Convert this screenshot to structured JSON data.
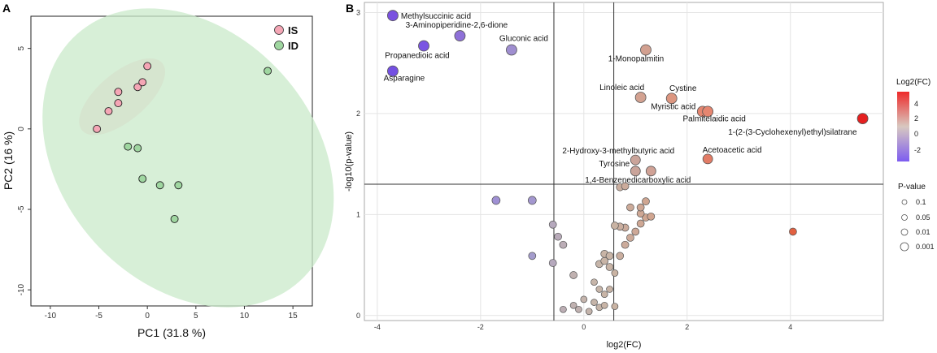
{
  "panels": {
    "a_label": "A",
    "b_label": "B"
  },
  "pca": {
    "type": "scatter",
    "xlabel": "PC1 (31.8 %)",
    "ylabel": "PC2 (16 %)",
    "xlim": [
      -12,
      17
    ],
    "ylim": [
      -11,
      7
    ],
    "xticks": [
      -10,
      -5,
      0,
      5,
      10,
      15
    ],
    "yticks": [
      5,
      0,
      -5,
      -10
    ],
    "grid": false,
    "legend_position": "top-right",
    "series": [
      {
        "name": "IS",
        "color": "#f4a6b5",
        "ellipse_color": "#f8c8d2",
        "points": [
          [
            -5.2,
            0.0
          ],
          [
            -4.0,
            1.1
          ],
          [
            -3.0,
            2.3
          ],
          [
            -3.0,
            1.6
          ],
          [
            -1.0,
            2.6
          ],
          [
            -0.5,
            2.9
          ],
          [
            0.0,
            3.9
          ]
        ]
      },
      {
        "name": "ID",
        "color": "#9fd6a0",
        "ellipse_color": "#c9e9c9",
        "points": [
          [
            12.4,
            3.6
          ],
          [
            -2.0,
            -1.1
          ],
          [
            -1.0,
            -1.2
          ],
          [
            -0.5,
            -3.1
          ],
          [
            1.3,
            -3.5
          ],
          [
            3.2,
            -3.5
          ],
          [
            2.8,
            -5.6
          ]
        ]
      }
    ]
  },
  "volcano": {
    "type": "scatter",
    "xlabel": "log2(FC)",
    "ylabel": "-log10(p-value)",
    "xlim": [
      -4.25,
      5.8
    ],
    "ylim": [
      -0.05,
      3.1
    ],
    "xticks": [
      -4,
      -2,
      0,
      2,
      4
    ],
    "yticks": [
      0,
      1,
      2,
      3
    ],
    "grid": true,
    "vlines": [
      -0.58,
      0.58
    ],
    "hline": 1.3,
    "color_legend_title": "Log2(FC)",
    "color_legend_ticks": [
      "4",
      "2",
      "0",
      "-2"
    ],
    "size_legend_title": "P-value",
    "size_legend_items": [
      "0.1",
      "0.05",
      "0.01",
      "0.001"
    ],
    "labeled_points": [
      {
        "label": "Methylsuccinic acid",
        "x": -3.7,
        "y": 2.97,
        "color": "#7a52e0",
        "r": 6.5
      },
      {
        "label": "3-Aminopiperidine-2,6-dione",
        "x": -2.4,
        "y": 2.77,
        "color": "#8e70d8",
        "r": 6.5
      },
      {
        "label": "Propanedioic acid",
        "x": -3.1,
        "y": 2.67,
        "color": "#7a55e2",
        "r": 6.5
      },
      {
        "label": "Gluconic acid",
        "x": -1.4,
        "y": 2.63,
        "color": "#9f8ed0",
        "r": 6.5
      },
      {
        "label": "Asparagine",
        "x": -3.7,
        "y": 2.42,
        "color": "#7450e2",
        "r": 6.5
      },
      {
        "label": "1-Monopalmitin",
        "x": 1.2,
        "y": 2.63,
        "color": "#d2a090",
        "r": 6.5
      },
      {
        "label": "Linoleic acid",
        "x": 1.1,
        "y": 2.16,
        "color": "#d3a291",
        "r": 6.5
      },
      {
        "label": "Cystine",
        "x": 1.7,
        "y": 2.15,
        "color": "#dc9680",
        "r": 6.5
      },
      {
        "label": "Myristic acid",
        "x": 2.3,
        "y": 2.02,
        "color": "#e58670",
        "r": 6.5
      },
      {
        "label": "Palmitelaidic acid",
        "x": 2.4,
        "y": 2.02,
        "color": "#e68670",
        "r": 6.5
      },
      {
        "label": "1-(2-(3-Cyclohexenyl)ethyl)silatrane",
        "x": 5.4,
        "y": 1.95,
        "color": "#e52020",
        "r": 6.5
      },
      {
        "label": "2-Hydroxy-3-methylbutyric acid",
        "x": 1.0,
        "y": 1.54,
        "color": "#caa49a",
        "r": 6
      },
      {
        "label": "Acetoacetic acid",
        "x": 2.4,
        "y": 1.55,
        "color": "#e27c66",
        "r": 6
      },
      {
        "label": "Tyrosine",
        "x": 1.0,
        "y": 1.43,
        "color": "#caa49a",
        "r": 6
      },
      {
        "label": "1,4-Benzenedicarboxylic acid",
        "x": 1.3,
        "y": 1.43,
        "color": "#d0a296",
        "r": 6
      }
    ],
    "points": [
      [
        -1.7,
        1.14,
        "#9f90d4",
        5
      ],
      [
        -1.0,
        1.14,
        "#a397cf",
        5
      ],
      [
        -1.0,
        0.59,
        "#a49ccc",
        4.5
      ],
      [
        -0.6,
        0.9,
        "#b6a9bd",
        4.5
      ],
      [
        -0.5,
        0.78,
        "#b8aab9",
        4.5
      ],
      [
        -0.4,
        0.7,
        "#bbadb6",
        4.5
      ],
      [
        -0.6,
        0.52,
        "#b6a9bd",
        4.5
      ],
      [
        -0.2,
        0.4,
        "#c0b1b0",
        4.5
      ],
      [
        -0.4,
        0.06,
        "#bcaeb4",
        4
      ],
      [
        -0.2,
        0.1,
        "#c0b1b0",
        4
      ],
      [
        -0.1,
        0.06,
        "#c0b1b0",
        4
      ],
      [
        0.0,
        0.16,
        "#c4b4ac",
        4
      ],
      [
        0.1,
        0.04,
        "#c4b4ac",
        4
      ],
      [
        0.2,
        0.13,
        "#c6b5a9",
        4
      ],
      [
        0.3,
        0.08,
        "#c6b5a9",
        4
      ],
      [
        0.4,
        0.1,
        "#c8b4a6",
        4
      ],
      [
        0.4,
        0.21,
        "#c8b4a6",
        4
      ],
      [
        0.3,
        0.26,
        "#c6b5a9",
        4
      ],
      [
        0.2,
        0.33,
        "#c6b5a9",
        4
      ],
      [
        0.5,
        0.26,
        "#c8b4a6",
        4
      ],
      [
        0.5,
        0.48,
        "#c8b4a6",
        4.5
      ],
      [
        0.3,
        0.51,
        "#c6b5a9",
        4.5
      ],
      [
        0.4,
        0.54,
        "#c8b4a6",
        4.5
      ],
      [
        0.4,
        0.61,
        "#c8b4a6",
        4.5
      ],
      [
        0.5,
        0.59,
        "#c8b4a6",
        4.5
      ],
      [
        0.6,
        0.09,
        "#c9b3a3",
        4
      ],
      [
        0.6,
        0.42,
        "#c9b3a3",
        4
      ],
      [
        0.7,
        0.59,
        "#caae9f",
        4.5
      ],
      [
        0.8,
        0.7,
        "#cbab9b",
        4.5
      ],
      [
        0.9,
        0.77,
        "#ccaa99",
        4.5
      ],
      [
        0.8,
        0.87,
        "#cbab9b",
        4.5
      ],
      [
        1.0,
        0.83,
        "#cda897",
        4.5
      ],
      [
        1.1,
        0.91,
        "#cea794",
        4.5
      ],
      [
        1.2,
        0.97,
        "#cfa691",
        4.5
      ],
      [
        1.3,
        0.98,
        "#d0a590",
        4.5
      ],
      [
        1.1,
        1.01,
        "#cea794",
        4.5
      ],
      [
        0.9,
        1.07,
        "#ccaa99",
        4.5
      ],
      [
        1.1,
        1.07,
        "#cea794",
        4.5
      ],
      [
        1.2,
        1.13,
        "#cfa691",
        4.5
      ],
      [
        0.7,
        0.88,
        "#caae9f",
        4.5
      ],
      [
        0.6,
        0.89,
        "#c9b3a3",
        4.5
      ],
      [
        0.7,
        1.27,
        "#caae9f",
        4.5
      ],
      [
        0.8,
        1.28,
        "#cbab9b",
        4.5
      ],
      [
        4.05,
        0.83,
        "#e26040",
        4.5
      ]
    ]
  }
}
